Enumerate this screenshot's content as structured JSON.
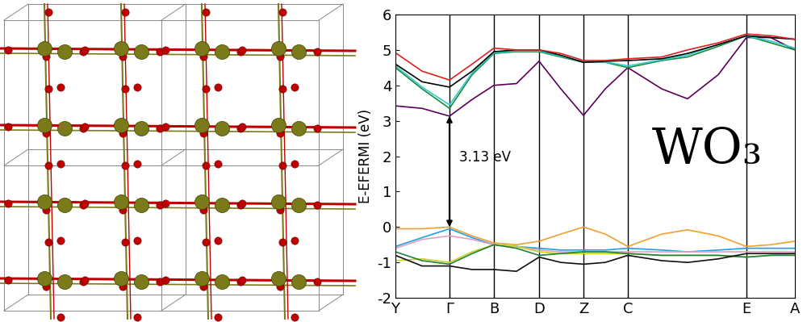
{
  "chart_data": {
    "type": "line",
    "y_label": "E-EFERMI (eV)",
    "x": [
      0,
      0.33,
      0.67,
      0.95,
      1.22,
      1.5,
      1.78,
      2.05,
      2.33,
      2.6,
      2.88,
      3.3,
      3.62,
      4.0,
      4.35,
      4.65,
      4.95
    ],
    "xlim": [
      0,
      4.95
    ],
    "xticks": [
      {
        "value": 0,
        "label": "Y"
      },
      {
        "value": 0.67,
        "label": "Γ"
      },
      {
        "value": 1.22,
        "label": "B"
      },
      {
        "value": 1.78,
        "label": "D"
      },
      {
        "value": 2.33,
        "label": "Z"
      },
      {
        "value": 2.88,
        "label": "C"
      },
      {
        "value": 4.35,
        "label": "E"
      },
      {
        "value": 4.95,
        "label": "A"
      }
    ],
    "ylim": [
      -2,
      6
    ],
    "yticks": [
      -2,
      -1,
      0,
      1,
      2,
      3,
      4,
      5,
      6
    ],
    "series": [
      {
        "color": "#5b005b",
        "values": [
          3.42,
          3.35,
          3.13,
          3.6,
          4.0,
          4.05,
          4.68,
          3.9,
          3.15,
          3.9,
          4.5,
          3.9,
          3.62,
          4.3,
          5.35,
          5.35,
          5.0
        ]
      },
      {
        "color": "#1a8a3a",
        "values": [
          4.5,
          3.9,
          3.35,
          4.3,
          4.9,
          4.95,
          4.95,
          4.8,
          4.65,
          4.65,
          4.5,
          4.7,
          4.8,
          5.1,
          5.4,
          5.2,
          5.0
        ]
      },
      {
        "color": "#33cccc",
        "values": [
          4.55,
          3.95,
          3.45,
          4.35,
          4.92,
          4.97,
          4.97,
          4.82,
          4.66,
          4.66,
          4.55,
          4.72,
          4.85,
          5.15,
          5.4,
          5.25,
          5.05
        ]
      },
      {
        "color": "#000000",
        "values": [
          4.6,
          4.1,
          3.95,
          4.4,
          4.95,
          5.0,
          5.0,
          4.85,
          4.65,
          4.68,
          4.7,
          4.75,
          4.9,
          5.15,
          5.4,
          5.35,
          5.3
        ]
      },
      {
        "color": "#e02020",
        "values": [
          4.92,
          4.4,
          4.15,
          4.6,
          5.05,
          5.0,
          5.0,
          4.9,
          4.7,
          4.7,
          4.75,
          4.8,
          5.0,
          5.2,
          5.45,
          5.4,
          5.3
        ]
      },
      {
        "color": "#f0a030",
        "values": [
          -0.05,
          -0.05,
          0.0,
          -0.25,
          -0.45,
          -0.5,
          -0.4,
          -0.2,
          0.0,
          -0.2,
          -0.55,
          -0.2,
          -0.08,
          -0.25,
          -0.55,
          -0.5,
          -0.4
        ]
      },
      {
        "color": "#20a0e0",
        "values": [
          -0.55,
          -0.3,
          -0.05,
          -0.3,
          -0.5,
          -0.55,
          -0.6,
          -0.65,
          -0.65,
          -0.65,
          -0.6,
          -0.65,
          -0.7,
          -0.65,
          -0.6,
          -0.6,
          -0.6
        ]
      },
      {
        "color": "#e0a0c0",
        "values": [
          -0.6,
          -0.35,
          -0.25,
          -0.35,
          -0.5,
          -0.55,
          -0.65,
          -0.7,
          -0.7,
          -0.7,
          -0.7,
          -0.7,
          -0.7,
          -0.7,
          -0.7,
          -0.7,
          -0.7
        ]
      },
      {
        "color": "#c8d020",
        "values": [
          -0.95,
          -0.9,
          -1.0,
          -0.7,
          -0.5,
          -0.55,
          -0.7,
          -0.75,
          -0.75,
          -0.75,
          -0.75,
          -0.8,
          -0.8,
          -0.8,
          -0.85,
          -0.8,
          -0.75
        ]
      },
      {
        "color": "#208040",
        "values": [
          -0.7,
          -0.95,
          -1.05,
          -0.75,
          -0.5,
          -0.6,
          -0.8,
          -0.75,
          -0.7,
          -0.7,
          -0.75,
          -0.8,
          -0.8,
          -0.8,
          -0.85,
          -0.8,
          -0.8
        ]
      },
      {
        "color": "#101010",
        "values": [
          -0.8,
          -1.1,
          -1.1,
          -1.2,
          -1.2,
          -1.25,
          -0.85,
          -1.0,
          -1.05,
          -1.0,
          -0.8,
          -0.95,
          -1.0,
          -0.9,
          -0.75,
          -0.75,
          -0.75
        ]
      }
    ],
    "annotations": [
      {
        "text": "3.13 eV",
        "x": 0.67,
        "y": [
          0,
          3.13
        ]
      },
      {
        "text": "WO₃"
      }
    ]
  }
}
